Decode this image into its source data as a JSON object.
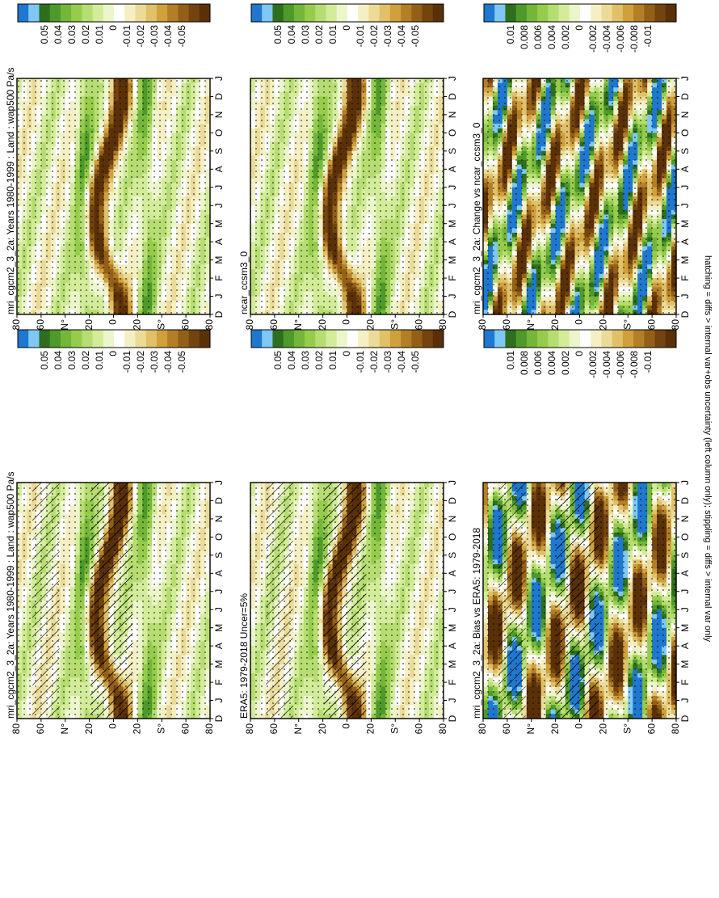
{
  "caption": "hatching = diffs > internal var+obs uncertainty (left column only); stippling = diffs > internal var only",
  "colors": {
    "scale": [
      "#1f78d0",
      "#7fc8f4",
      "#2e6e1c",
      "#4d9a2a",
      "#73b63a",
      "#96cc4c",
      "#b6dd72",
      "#d3ec9a",
      "#ecf6cc",
      "#ffffff",
      "#f5efc4",
      "#ecdb98",
      "#e0c068",
      "#cfa03c",
      "#b47e26",
      "#946018",
      "#74440e",
      "#5a3008"
    ]
  },
  "chart_data": [
    {
      "type": "heatmap",
      "title": "mri_cgcm2_3_2a: Years 1980-1999 : Land : wap500 Pa/s",
      "x_ticks": [
        "D",
        "J",
        "F",
        "M",
        "A",
        "M",
        "J",
        "J",
        "A",
        "S",
        "O",
        "N",
        "D",
        "J"
      ],
      "y_ticks": [
        "80",
        "60",
        "N°",
        "20",
        "0",
        "20",
        "S°",
        "60",
        "80"
      ],
      "legend": [
        "0.05",
        "0.04",
        "0.03",
        "0.02",
        "0.01",
        "0",
        "-0.01",
        "-0.02",
        "-0.03",
        "-0.04",
        "-0.05"
      ],
      "hatching": true,
      "stippling": true
    },
    {
      "type": "heatmap",
      "title": "mri_cgcm2_3_2a: Years 1980-1999 : Land : wap500 Pa/s",
      "x_ticks": [
        "D",
        "J",
        "F",
        "M",
        "A",
        "M",
        "J",
        "J",
        "A",
        "S",
        "O",
        "N",
        "D",
        "J"
      ],
      "y_ticks": [
        "80",
        "60",
        "N°",
        "20",
        "0",
        "20",
        "S°",
        "60",
        "80"
      ],
      "legend": [
        "0.05",
        "0.04",
        "0.03",
        "0.02",
        "0.01",
        "0",
        "-0.01",
        "-0.02",
        "-0.03",
        "-0.04",
        "-0.05"
      ],
      "hatching": false,
      "stippling": true
    },
    {
      "type": "heatmap",
      "title": "ERA5: 1979-2018 Uncer=5%",
      "x_ticks": [
        "D",
        "J",
        "F",
        "M",
        "A",
        "M",
        "J",
        "J",
        "A",
        "S",
        "O",
        "N",
        "D",
        "J"
      ],
      "y_ticks": [
        "80",
        "60",
        "N°",
        "20",
        "0",
        "20",
        "S°",
        "60",
        "80"
      ],
      "legend": [
        "0.05",
        "0.04",
        "0.03",
        "0.02",
        "0.01",
        "0",
        "-0.01",
        "-0.02",
        "-0.03",
        "-0.04",
        "-0.05"
      ],
      "hatching": true,
      "stippling": true
    },
    {
      "type": "heatmap",
      "title": "ncar_ccsm3_0",
      "x_ticks": [
        "D",
        "J",
        "F",
        "M",
        "A",
        "M",
        "J",
        "J",
        "A",
        "S",
        "O",
        "N",
        "D",
        "J"
      ],
      "y_ticks": [
        "80",
        "60",
        "N°",
        "20",
        "0",
        "20",
        "S°",
        "60",
        "80"
      ],
      "legend": [
        "0.05",
        "0.04",
        "0.03",
        "0.02",
        "0.01",
        "0",
        "-0.01",
        "-0.02",
        "-0.03",
        "-0.04",
        "-0.05"
      ],
      "hatching": false,
      "stippling": true
    },
    {
      "type": "heatmap",
      "title": "mri_cgcm2_3_2a: Bias vs ERA5: 1979-2018",
      "x_ticks": [
        "D",
        "J",
        "F",
        "M",
        "A",
        "M",
        "J",
        "J",
        "A",
        "S",
        "O",
        "N",
        "D",
        "J"
      ],
      "y_ticks": [
        "80",
        "60",
        "N°",
        "20",
        "0",
        "20",
        "S°",
        "60",
        "80"
      ],
      "legend": [
        "0.01",
        "0.008",
        "0.006",
        "0.004",
        "0.002",
        "0",
        "-0.002",
        "-0.004",
        "-0.006",
        "-0.008",
        "-0.01"
      ],
      "hatching": true,
      "stippling": true
    },
    {
      "type": "heatmap",
      "title": "mri_cgcm2_3_2a: Change vs ncar_ccsm3_0",
      "x_ticks": [
        "D",
        "J",
        "F",
        "M",
        "A",
        "M",
        "J",
        "J",
        "A",
        "S",
        "O",
        "N",
        "D",
        "J"
      ],
      "y_ticks": [
        "80",
        "60",
        "N°",
        "20",
        "0",
        "20",
        "S°",
        "60",
        "80"
      ],
      "legend": [
        "0.01",
        "0.008",
        "0.006",
        "0.004",
        "0.002",
        "0",
        "-0.002",
        "-0.004",
        "-0.006",
        "-0.008",
        "-0.01"
      ],
      "hatching": false,
      "stippling": true
    }
  ]
}
